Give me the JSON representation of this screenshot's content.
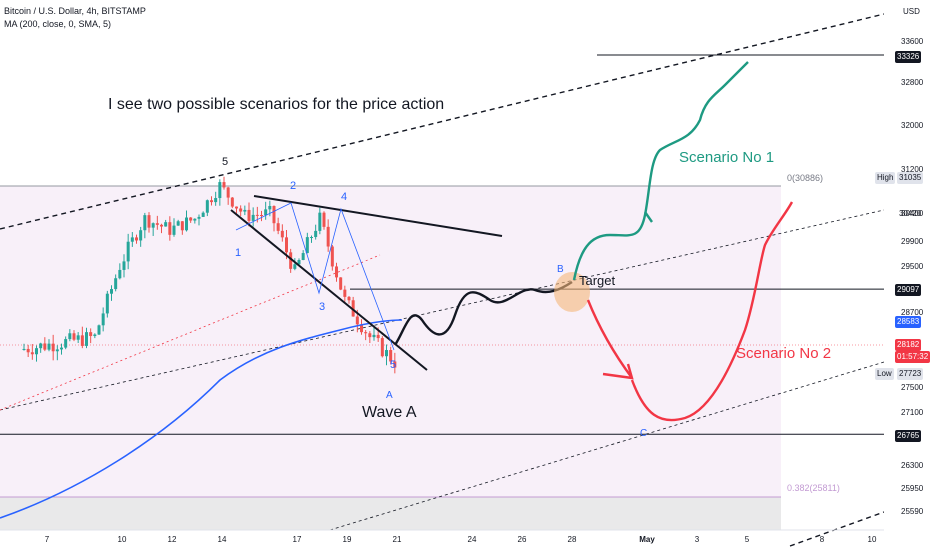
{
  "header": {
    "symbol_line": "Bitcoin / U.S. Dollar, 4h, BITSTAMP",
    "indicator_line": "MA (200, close, 0, SMA, 5)"
  },
  "axis": {
    "currency_label": "USD",
    "y_ticks": [
      "33600",
      "32800",
      "32000",
      "31200",
      "30400",
      "29900",
      "29500",
      "28700",
      "27500",
      "27100",
      "26300",
      "25950",
      "25590"
    ],
    "x_ticks": [
      "7",
      "10",
      "12",
      "14",
      "17",
      "19",
      "21",
      "24",
      "26",
      "28",
      "May",
      "3",
      "5",
      "8",
      "10"
    ]
  },
  "price_labels": {
    "p33326": "33326",
    "high_tag": "High",
    "high_value": "31035",
    "p30420": "30420",
    "p29097": "29097",
    "ma_value": "28583",
    "last_price": "28182",
    "countdown": "01:57:32",
    "low_tag": "Low",
    "low_value": "27723",
    "p26765": "26765"
  },
  "annotations": {
    "scenario_intro": "I see two possible scenarios for the price action",
    "scenario1": "Scenario No 1",
    "scenario2": "Scenario No 2",
    "target": "Target",
    "wave_a": "Wave A",
    "fib_top": "0(30886)",
    "fib_bottom": "0.382(25811)",
    "wave_labels": {
      "w1": "1",
      "w2": "2",
      "w3": "3",
      "w4": "4",
      "w5": "5",
      "wtop5": "5",
      "wA": "A",
      "wB": "B",
      "wC": "C"
    }
  },
  "colors": {
    "candle_up": "#26a69a",
    "candle_down": "#ef5350",
    "ma": "#2962ff",
    "scenario1": "#1e9a82",
    "scenario2": "#f23645",
    "wave_label": "#2962ff",
    "last_price_bg": "#f23645"
  },
  "chart_data": {
    "type": "candlestick",
    "symbol": "Bitcoin / U.S. Dollar",
    "interval": "4h",
    "exchange": "BITSTAMP",
    "indicator": "MA (200, close, 0, SMA, 5)",
    "ylim": [
      25400,
      34000
    ],
    "horizontal_levels": [
      33326,
      31035,
      29097,
      26765
    ],
    "last_price": 28182,
    "ma_last": 28583,
    "range_high": 31035,
    "range_low": 27723,
    "close_path": [
      {
        "x": "2023-04-06",
        "y": 28100
      },
      {
        "x": "2023-04-09",
        "y": 28300
      },
      {
        "x": "2023-04-10",
        "y": 29500
      },
      {
        "x": "2023-04-11",
        "y": 30300
      },
      {
        "x": "2023-04-12",
        "y": 30100
      },
      {
        "x": "2023-04-13",
        "y": 30300
      },
      {
        "x": "2023-04-14",
        "y": 30900
      },
      {
        "x": "2023-04-15",
        "y": 30350
      },
      {
        "x": "2023-04-16",
        "y": 30400
      },
      {
        "x": "2023-04-17",
        "y": 29400
      },
      {
        "x": "2023-04-18",
        "y": 30300
      },
      {
        "x": "2023-04-19",
        "y": 28900
      },
      {
        "x": "2023-04-20",
        "y": 28300
      },
      {
        "x": "2023-04-21",
        "y": 27900
      }
    ]
  }
}
